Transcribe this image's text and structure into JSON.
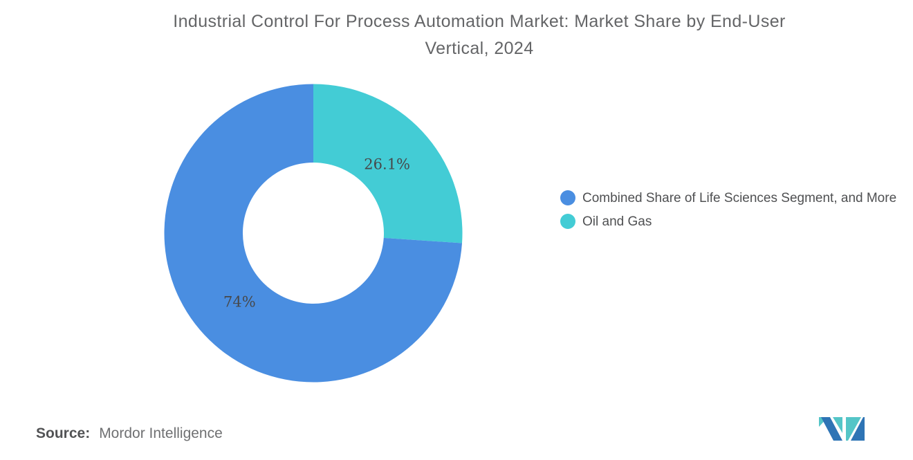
{
  "header": {
    "title_line1": "Industrial Control For Process Automation Market: Market Share by End-User",
    "title_line2": "Vertical, 2024"
  },
  "chart_data": {
    "type": "pie",
    "subtype": "donut",
    "title": "Industrial Control For Process Automation Market: Market Share by End-User Vertical, 2024",
    "legend_position": "right",
    "first_slice_at_top": "Oil and Gas",
    "clockwise": true,
    "slices": [
      {
        "name": "Combined Share of Life Sciences Segment, and More",
        "value": 74,
        "label": "74%",
        "color": "#4a8ee1"
      },
      {
        "name": "Oil and Gas",
        "value": 26.1,
        "label": "26.1%",
        "color": "#43ccd5"
      }
    ]
  },
  "footer": {
    "source_label": "Source:",
    "source_value": "Mordor Intelligence",
    "logo_name": "mordor-intelligence-logo"
  },
  "colors": {
    "slice_blue": "#4a8ee1",
    "slice_teal": "#43ccd5",
    "title_text": "#646567",
    "legend_text": "#4f5052",
    "slice_label_text": "#47484a",
    "source_label_text": "#525355",
    "source_value_text": "#6f7072",
    "logo_blue": "#2e74b5",
    "logo_teal": "#54c5c7",
    "background": "#ffffff"
  }
}
